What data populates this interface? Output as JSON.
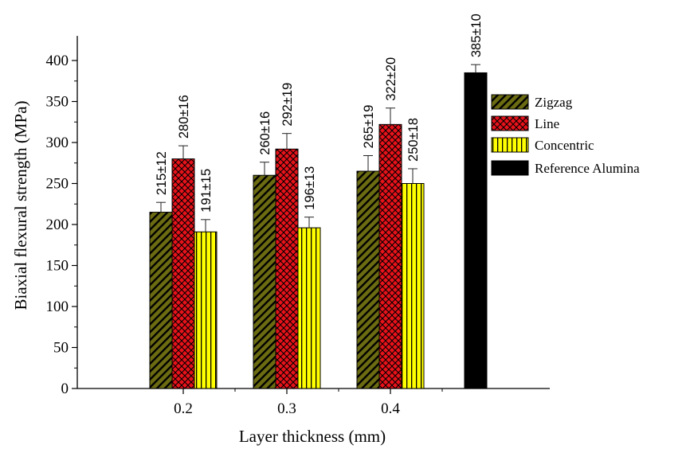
{
  "chart_data": {
    "type": "bar",
    "xlabel": "Layer thickness (mm)",
    "ylabel": "Biaxial flexural strength (MPa)",
    "ylim": [
      0,
      430
    ],
    "yticks": [
      0,
      50,
      100,
      150,
      200,
      250,
      300,
      350,
      400
    ],
    "categories": [
      "0.2",
      "0.3",
      "0.4"
    ],
    "series": [
      {
        "name": "Zigzag",
        "values": [
          215,
          260,
          265
        ],
        "errors": [
          12,
          16,
          19
        ],
        "labels": [
          "215±12",
          "260±16",
          "265±19"
        ],
        "color": "#6b6b12",
        "pattern": "diagonal-hatch"
      },
      {
        "name": "Line",
        "values": [
          280,
          292,
          322
        ],
        "errors": [
          16,
          19,
          20
        ],
        "labels": [
          "280±16",
          "292±19",
          "322±20"
        ],
        "color": "#e8121a",
        "pattern": "cross-hatch"
      },
      {
        "name": "Concentric",
        "values": [
          191,
          196,
          250
        ],
        "errors": [
          15,
          13,
          18
        ],
        "labels": [
          "191±15",
          "196±13",
          "250±18"
        ],
        "color": "#ffff00",
        "pattern": "vertical-lines"
      }
    ],
    "reference": {
      "name": "Reference Alumina",
      "value": 385,
      "error": 10,
      "label": "385±10",
      "color": "#000000"
    },
    "legend_position": "right",
    "grid": false
  }
}
